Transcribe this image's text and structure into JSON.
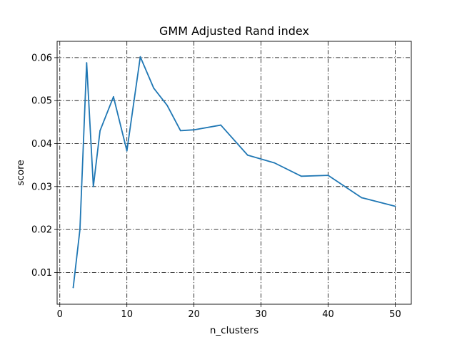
{
  "chart_data": {
    "type": "line",
    "title": "GMM Adjusted Rand index",
    "xlabel": "n_clusters",
    "ylabel": "score",
    "xlim": [
      -0.4,
      52.4
    ],
    "ylim": [
      0.0026,
      0.0638
    ],
    "xticks": [
      0,
      10,
      20,
      30,
      40,
      50
    ],
    "xtick_labels": [
      "0",
      "10",
      "20",
      "30",
      "40",
      "50"
    ],
    "yticks": [
      0.01,
      0.02,
      0.03,
      0.04,
      0.05,
      0.06
    ],
    "ytick_labels": [
      "0.01",
      "0.02",
      "0.03",
      "0.04",
      "0.05",
      "0.06"
    ],
    "grid": true,
    "series": [
      {
        "name": "GMM Adjusted Rand index",
        "color": "#1f77b4",
        "x": [
          2,
          3,
          4,
          5,
          6,
          8,
          10,
          12,
          14,
          16,
          18,
          20,
          24,
          28,
          32,
          36,
          40,
          45,
          50
        ],
        "y": [
          0.0065,
          0.02,
          0.0588,
          0.03,
          0.043,
          0.0509,
          0.0383,
          0.0602,
          0.0529,
          0.0489,
          0.043,
          0.0432,
          0.0443,
          0.0373,
          0.0355,
          0.0324,
          0.0326,
          0.0274,
          0.0254
        ]
      }
    ]
  }
}
